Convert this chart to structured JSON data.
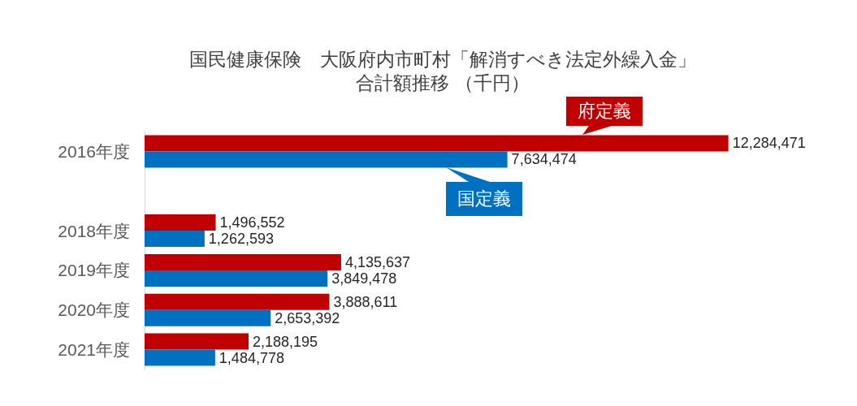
{
  "chart_data": {
    "type": "bar",
    "orientation": "horizontal",
    "title": "国民健康保険　大阪府内市町村「解消すべき法定外繰入金」",
    "subtitle": "合計額推移 （千円）",
    "categories": [
      "2016年度",
      null,
      "2018年度",
      "2019年度",
      "2020年度",
      "2021年度"
    ],
    "series": [
      {
        "name": "府定義",
        "color": "#c00000",
        "values": [
          12284471,
          null,
          1496552,
          4135637,
          3888611,
          2188195
        ],
        "value_labels": [
          "12,284,471",
          null,
          "1,496,552",
          "4,135,637",
          "3,888,611",
          "2,188,195"
        ]
      },
      {
        "name": "国定義",
        "color": "#0070c0",
        "values": [
          7634474,
          null,
          1262593,
          3849478,
          2653392,
          1484778
        ],
        "value_labels": [
          "7,634,474",
          null,
          "1,262,593",
          "3,849,478",
          "2,653,392",
          "1,484,778"
        ]
      }
    ]
  }
}
